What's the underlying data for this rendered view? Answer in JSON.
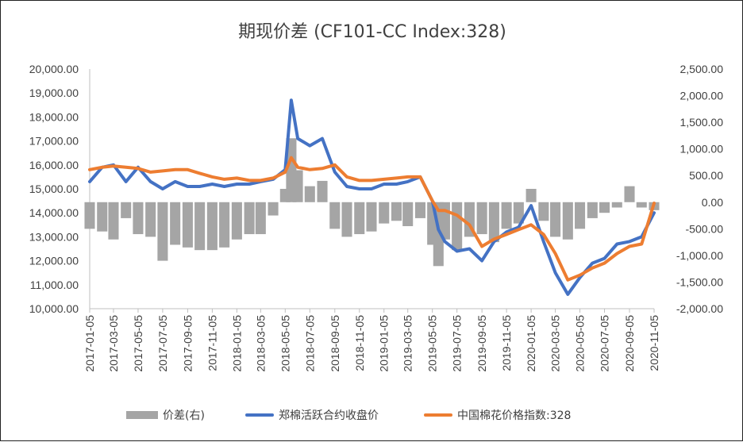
{
  "chart_data": {
    "type": "line",
    "title": "期现价差 (CF101-CC Index:328)",
    "x_ticks": [
      "2017-01-05",
      "2017-03-05",
      "2017-05-05",
      "2017-07-05",
      "2017-09-05",
      "2017-11-05",
      "2018-01-05",
      "2018-03-05",
      "2018-05-05",
      "2018-07-05",
      "2018-09-05",
      "2018-11-05",
      "2019-01-05",
      "2019-03-05",
      "2019-05-05",
      "2019-07-05",
      "2019-09-05",
      "2019-11-05",
      "2020-01-05",
      "2020-03-05",
      "2020-05-05",
      "2020-07-05",
      "2020-09-05",
      "2020-11-05"
    ],
    "y_left": {
      "ylim": [
        10000,
        20000
      ],
      "ticks": [
        "10,000.00",
        "11,000.00",
        "12,000.00",
        "13,000.00",
        "14,000.00",
        "15,000.00",
        "16,000.00",
        "17,000.00",
        "18,000.00",
        "19,000.00",
        "20,000.00"
      ]
    },
    "y_right": {
      "ylim": [
        -2000,
        2500
      ],
      "ticks": [
        "-2,000.00",
        "-1,500.00",
        "-1,000.00",
        "-500.00",
        "0.00",
        "500.00",
        "1,000.00",
        "1,500.00",
        "2,000.00",
        "2,500.00"
      ]
    },
    "series": [
      {
        "name": "价差(右)",
        "kind": "bar",
        "axis": "right",
        "color": "#A5A5A5",
        "x": [
          "2017-01-05",
          "2017-02-05",
          "2017-03-05",
          "2017-04-05",
          "2017-05-05",
          "2017-06-05",
          "2017-07-05",
          "2017-08-05",
          "2017-09-05",
          "2017-10-05",
          "2017-11-05",
          "2017-12-05",
          "2018-01-05",
          "2018-02-05",
          "2018-03-05",
          "2018-04-05",
          "2018-05-05",
          "2018-05-20",
          "2018-06-05",
          "2018-07-05",
          "2018-08-05",
          "2018-09-05",
          "2018-10-05",
          "2018-11-05",
          "2018-12-05",
          "2019-01-05",
          "2019-02-05",
          "2019-03-05",
          "2019-04-05",
          "2019-05-05",
          "2019-05-20",
          "2019-06-05",
          "2019-07-05",
          "2019-08-05",
          "2019-09-05",
          "2019-10-05",
          "2019-11-05",
          "2019-12-05",
          "2020-01-05",
          "2020-02-05",
          "2020-03-05",
          "2020-04-05",
          "2020-05-05",
          "2020-06-05",
          "2020-07-05",
          "2020-08-05",
          "2020-09-05",
          "2020-10-05",
          "2020-11-05"
        ],
        "values": [
          -500,
          -550,
          -700,
          -300,
          -600,
          -650,
          -1100,
          -800,
          -850,
          -900,
          -900,
          -850,
          -700,
          -600,
          -600,
          -250,
          250,
          1200,
          600,
          300,
          400,
          -500,
          -650,
          -600,
          -550,
          -400,
          -350,
          -450,
          -300,
          -800,
          -1200,
          -700,
          -900,
          -650,
          -600,
          -750,
          -500,
          -400,
          250,
          -350,
          -650,
          -700,
          -500,
          -300,
          -200,
          -100,
          300,
          -100,
          -150
        ]
      },
      {
        "name": "郑棉活跃合约收盘价",
        "kind": "line",
        "axis": "left",
        "color": "#4472C4",
        "x": [
          "2017-01-05",
          "2017-02-05",
          "2017-03-05",
          "2017-04-05",
          "2017-05-05",
          "2017-06-05",
          "2017-07-05",
          "2017-08-05",
          "2017-09-05",
          "2017-10-05",
          "2017-11-05",
          "2017-12-05",
          "2018-01-05",
          "2018-02-05",
          "2018-03-05",
          "2018-04-05",
          "2018-05-05",
          "2018-05-20",
          "2018-06-05",
          "2018-07-05",
          "2018-08-05",
          "2018-09-05",
          "2018-10-05",
          "2018-11-05",
          "2018-12-05",
          "2019-01-05",
          "2019-02-05",
          "2019-03-05",
          "2019-04-05",
          "2019-05-05",
          "2019-05-20",
          "2019-06-05",
          "2019-07-05",
          "2019-08-05",
          "2019-09-05",
          "2019-10-05",
          "2019-11-05",
          "2019-12-05",
          "2020-01-05",
          "2020-02-05",
          "2020-03-05",
          "2020-04-05",
          "2020-05-05",
          "2020-06-05",
          "2020-07-05",
          "2020-08-05",
          "2020-09-05",
          "2020-10-05",
          "2020-11-05"
        ],
        "values": [
          15300,
          15900,
          16000,
          15300,
          15900,
          15300,
          15000,
          15300,
          15100,
          15100,
          15200,
          15100,
          15200,
          15200,
          15300,
          15400,
          15800,
          18700,
          17100,
          16800,
          17100,
          15700,
          15100,
          15000,
          15000,
          15200,
          15200,
          15300,
          15500,
          14500,
          13300,
          12800,
          12400,
          12500,
          12000,
          12800,
          13200,
          13400,
          14300,
          12800,
          11500,
          10600,
          11300,
          11900,
          12100,
          12700,
          12800,
          13000,
          14000
        ]
      },
      {
        "name": "中国棉花价格指数:328",
        "kind": "line",
        "axis": "left",
        "color": "#ED7D31",
        "x": [
          "2017-01-05",
          "2017-02-05",
          "2017-03-05",
          "2017-04-05",
          "2017-05-05",
          "2017-06-05",
          "2017-07-05",
          "2017-08-05",
          "2017-09-05",
          "2017-10-05",
          "2017-11-05",
          "2017-12-05",
          "2018-01-05",
          "2018-02-05",
          "2018-03-05",
          "2018-04-05",
          "2018-05-05",
          "2018-05-20",
          "2018-06-05",
          "2018-07-05",
          "2018-08-05",
          "2018-09-05",
          "2018-10-05",
          "2018-11-05",
          "2018-12-05",
          "2019-01-05",
          "2019-02-05",
          "2019-03-05",
          "2019-04-05",
          "2019-05-05",
          "2019-05-20",
          "2019-06-05",
          "2019-07-05",
          "2019-08-05",
          "2019-09-05",
          "2019-10-05",
          "2019-11-05",
          "2019-12-05",
          "2020-01-05",
          "2020-02-05",
          "2020-03-05",
          "2020-04-05",
          "2020-05-05",
          "2020-06-05",
          "2020-07-05",
          "2020-08-05",
          "2020-09-05",
          "2020-10-05",
          "2020-11-05"
        ],
        "values": [
          15800,
          15900,
          15950,
          15900,
          15850,
          15700,
          15750,
          15800,
          15800,
          15650,
          15500,
          15400,
          15450,
          15350,
          15350,
          15450,
          15700,
          16300,
          15900,
          15800,
          15850,
          16000,
          15500,
          15350,
          15350,
          15400,
          15450,
          15500,
          15500,
          14500,
          14100,
          14100,
          13900,
          13500,
          12600,
          12900,
          13100,
          13300,
          13500,
          13100,
          12300,
          11200,
          11400,
          11700,
          11900,
          12300,
          12600,
          12700,
          14400
        ]
      }
    ]
  },
  "legend": [
    {
      "label": "价差(右)",
      "color": "#A5A5A5",
      "kind": "bar"
    },
    {
      "label": "郑棉活跃合约收盘价",
      "color": "#4472C4",
      "kind": "line"
    },
    {
      "label": "中国棉花价格指数:328",
      "color": "#ED7D31",
      "kind": "line"
    }
  ]
}
